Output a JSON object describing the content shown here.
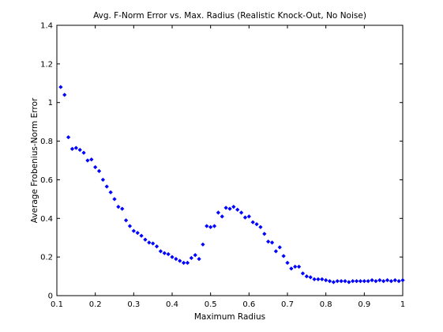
{
  "chart_data": {
    "type": "scatter",
    "title": "Avg. F-Norm Error vs. Max. Radius (Realistic Knock-Out, No Noise)",
    "xlabel": "Maximum Radius",
    "ylabel": "Average Frobenius-Norm Error",
    "xlim": [
      0.1,
      1.0
    ],
    "ylim": [
      0,
      1.4
    ],
    "xticks": [
      0.1,
      0.2,
      0.3,
      0.4,
      0.5,
      0.6,
      0.7,
      0.8,
      0.9,
      1.0
    ],
    "xtick_labels": [
      "0.1",
      "0.2",
      "0.3",
      "0.4",
      "0.5",
      "0.6",
      "0.7",
      "0.8",
      "0.9",
      "1"
    ],
    "yticks": [
      0,
      0.2,
      0.4,
      0.6,
      0.8,
      1.0,
      1.2,
      1.4
    ],
    "ytick_labels": [
      "0",
      "0.2",
      "0.4",
      "0.6",
      "0.8",
      "1",
      "1.2",
      "1.4"
    ],
    "grid": false,
    "marker_color": "#0000ff",
    "series": [
      {
        "x": [
          0.11,
          0.12,
          0.13,
          0.14,
          0.15,
          0.16,
          0.17,
          0.18,
          0.19,
          0.2,
          0.21,
          0.22,
          0.23,
          0.24,
          0.25,
          0.26,
          0.27,
          0.28,
          0.29,
          0.3,
          0.31,
          0.32,
          0.33,
          0.34,
          0.35,
          0.36,
          0.37,
          0.38,
          0.39,
          0.4,
          0.41,
          0.42,
          0.43,
          0.44,
          0.45,
          0.46,
          0.47,
          0.48,
          0.49,
          0.5,
          0.51,
          0.52,
          0.53,
          0.54,
          0.55,
          0.56,
          0.57,
          0.58,
          0.59,
          0.6,
          0.61,
          0.62,
          0.63,
          0.64,
          0.65,
          0.66,
          0.67,
          0.68,
          0.69,
          0.7,
          0.71,
          0.72,
          0.73,
          0.74,
          0.75,
          0.76,
          0.77,
          0.78,
          0.79,
          0.8,
          0.81,
          0.82,
          0.83,
          0.84,
          0.85,
          0.86,
          0.87,
          0.88,
          0.89,
          0.9,
          0.91,
          0.92,
          0.93,
          0.94,
          0.95,
          0.96,
          0.97,
          0.98,
          0.99,
          1.0
        ],
        "y": [
          1.08,
          1.04,
          0.82,
          0.76,
          0.765,
          0.755,
          0.74,
          0.7,
          0.705,
          0.665,
          0.645,
          0.6,
          0.565,
          0.535,
          0.5,
          0.46,
          0.45,
          0.39,
          0.36,
          0.335,
          0.325,
          0.31,
          0.29,
          0.275,
          0.27,
          0.255,
          0.23,
          0.22,
          0.215,
          0.2,
          0.19,
          0.18,
          0.17,
          0.17,
          0.195,
          0.21,
          0.19,
          0.265,
          0.36,
          0.355,
          0.36,
          0.43,
          0.41,
          0.455,
          0.45,
          0.46,
          0.445,
          0.43,
          0.405,
          0.41,
          0.38,
          0.37,
          0.355,
          0.32,
          0.28,
          0.275,
          0.23,
          0.25,
          0.205,
          0.17,
          0.14,
          0.15,
          0.15,
          0.115,
          0.1,
          0.095,
          0.085,
          0.085,
          0.085,
          0.08,
          0.075,
          0.07,
          0.075,
          0.075,
          0.075,
          0.07,
          0.075,
          0.075,
          0.075,
          0.075,
          0.075,
          0.08,
          0.075,
          0.08,
          0.075,
          0.08,
          0.075,
          0.08,
          0.075,
          0.08
        ]
      }
    ]
  }
}
